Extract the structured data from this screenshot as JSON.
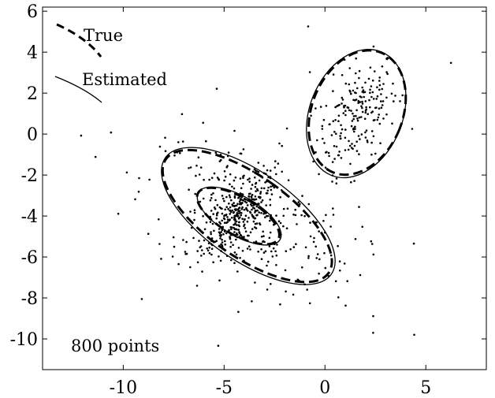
{
  "chart_data": {
    "type": "scatter",
    "title": "",
    "xlabel": "",
    "ylabel": "",
    "xlim": [
      -14,
      8
    ],
    "ylim": [
      -11.5,
      6.2
    ],
    "x_ticks": [
      -10,
      -5,
      0,
      5
    ],
    "y_ticks": [
      6,
      4,
      2,
      0,
      -2,
      -4,
      -6,
      -8,
      -10
    ],
    "x_tick_labels": [
      "-10",
      "-5",
      "0",
      "5"
    ],
    "y_tick_labels": [
      "6",
      "4",
      "2",
      "0",
      "-2",
      "-4",
      "-6",
      "-8",
      "-10"
    ],
    "grid": false,
    "legend": {
      "placement": "top-left",
      "entries": [
        {
          "label": "True",
          "style": "dashed"
        },
        {
          "label": "Estimated",
          "style": "solid"
        }
      ]
    },
    "annotation": "800 points",
    "n_points": 800,
    "point_color": "#000000",
    "ellipses": {
      "true": [
        {
          "cx": 1.6,
          "cy": 1.05,
          "rx": 2.25,
          "ry": 3.15,
          "angle": 22
        },
        {
          "cx": -3.85,
          "cy": -4.0,
          "rx": 2.02,
          "ry": 4.85,
          "angle": -55
        },
        {
          "cx": -4.3,
          "cy": -4.0,
          "rx": 0.93,
          "ry": 2.26,
          "angle": -60
        }
      ],
      "estimated": [
        {
          "cx": 1.55,
          "cy": 1.0,
          "rx": 2.3,
          "ry": 3.25,
          "angle": 22
        },
        {
          "cx": -3.8,
          "cy": -4.0,
          "rx": 2.2,
          "ry": 4.95,
          "angle": -55
        },
        {
          "cx": -4.25,
          "cy": -4.0,
          "rx": 0.97,
          "ry": 2.3,
          "angle": -60
        }
      ]
    },
    "clusters": [
      {
        "count": 210,
        "cx": 1.6,
        "cy": 1.0,
        "sx": 1.0,
        "sy": 1.35,
        "corr": 0.45
      },
      {
        "count": 280,
        "cx": -4.3,
        "cy": -4.0,
        "sx": 0.9,
        "sy": 1.0,
        "corr": 0.7
      },
      {
        "count": 290,
        "cx": -3.8,
        "cy": -4.0,
        "sx": 2.6,
        "sy": 1.9,
        "corr": -0.45
      },
      {
        "count": 20,
        "cx": -3.0,
        "cy": -1.5,
        "sx": 5.0,
        "sy": 4.5,
        "corr": 0
      }
    ]
  }
}
